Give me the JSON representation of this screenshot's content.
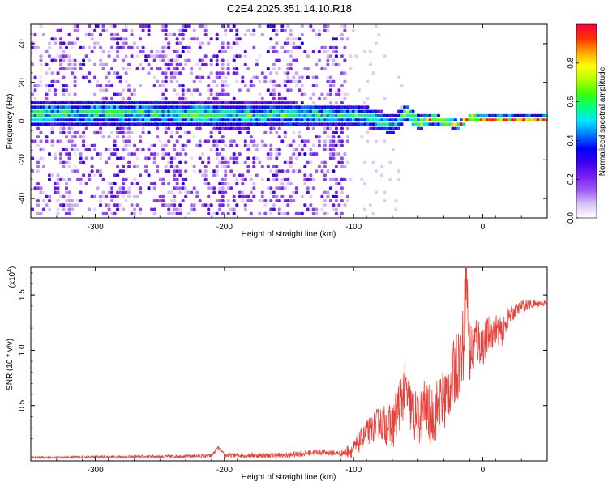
{
  "title": "C2E4.2025.351.14.10.R18",
  "chart_data": [
    {
      "type": "heatmap",
      "xlabel": "Height of straight line (km)",
      "ylabel": "Frequency (Hz)",
      "xlim": [
        -350,
        50
      ],
      "ylim": [
        -50,
        50
      ],
      "x_ticks": [
        "-300",
        "-200",
        "-100",
        "0"
      ],
      "y_ticks": [
        "-40",
        "-20",
        "0",
        "20",
        "40"
      ],
      "colorbar": {
        "label": "Normalized spectral amplitude",
        "range": [
          0,
          1
        ],
        "ticks": [
          "0.0",
          "0.2",
          "0.4",
          "0.6",
          "0.8"
        ],
        "colors": [
          "#ffffff",
          "#d7c4f5",
          "#9d5cf2",
          "#7a1ff0",
          "#3c00f0",
          "#0000ff",
          "#0078ff",
          "#00e5ff",
          "#00ff80",
          "#40ff00",
          "#b0ff00",
          "#ffff00",
          "#ffa000",
          "#ff3000",
          "#ff0040"
        ]
      },
      "band": {
        "center_hz": [
          [
            -290,
            4
          ],
          [
            -250,
            4
          ],
          [
            -200,
            3
          ],
          [
            -150,
            3
          ],
          [
            -110,
            3
          ],
          [
            -90,
            2
          ],
          [
            -70,
            -2
          ],
          [
            -60,
            4
          ],
          [
            -50,
            -1
          ],
          [
            -40,
            1
          ],
          [
            -20,
            -2
          ],
          [
            -10,
            2
          ],
          [
            0,
            1
          ],
          [
            20,
            1
          ],
          [
            50,
            1
          ]
        ],
        "half_width_hz": [
          [
            -290,
            7
          ],
          [
            -200,
            7
          ],
          [
            -110,
            6
          ],
          [
            -70,
            5
          ],
          [
            -40,
            3
          ],
          [
            -10,
            2
          ],
          [
            50,
            2
          ]
        ]
      }
    },
    {
      "type": "line",
      "xlabel": "Height of straight line (km)",
      "ylabel": "SNR (10 * v/v)",
      "y_multiplier": "(x10",
      "y_multiplier_exp": "4",
      "y_multiplier_close": ")",
      "xlim": [
        -350,
        50
      ],
      "ylim": [
        0,
        17500
      ],
      "x_ticks": [
        "-300",
        "-200",
        "-100",
        "0"
      ],
      "y_ticks": [
        "0.5",
        "1.0",
        "1.5"
      ],
      "line_color": "#e8413a",
      "series": [
        {
          "points": [
            [
              -350,
              300
            ],
            [
              -300,
              350
            ],
            [
              -250,
              400
            ],
            [
              -210,
              450
            ],
            [
              -205,
              1200
            ],
            [
              -200,
              500
            ],
            [
              -150,
              500
            ],
            [
              -130,
              800
            ],
            [
              -110,
              700
            ],
            [
              -100,
              1000
            ],
            [
              -90,
              2500
            ],
            [
              -80,
              3500
            ],
            [
              -70,
              3000
            ],
            [
              -65,
              5000
            ],
            [
              -60,
              6500
            ],
            [
              -55,
              4500
            ],
            [
              -50,
              3500
            ],
            [
              -45,
              5000
            ],
            [
              -40,
              4000
            ],
            [
              -30,
              5500
            ],
            [
              -25,
              7000
            ],
            [
              -20,
              8500
            ],
            [
              -15,
              10500
            ],
            [
              -13,
              17500
            ],
            [
              -10,
              9500
            ],
            [
              -5,
              11000
            ],
            [
              0,
              10500
            ],
            [
              5,
              11500
            ],
            [
              10,
              12000
            ],
            [
              15,
              11500
            ],
            [
              20,
              13000
            ],
            [
              25,
              13500
            ],
            [
              30,
              14000
            ],
            [
              40,
              14200
            ],
            [
              50,
              14300
            ]
          ],
          "noise": [
            [
              -350,
              100
            ],
            [
              -210,
              150
            ],
            [
              -200,
              200
            ],
            [
              -110,
              300
            ],
            [
              -100,
              800
            ],
            [
              -80,
              1500
            ],
            [
              -65,
              2500
            ],
            [
              -50,
              2500
            ],
            [
              -25,
              3000
            ],
            [
              -15,
              3500
            ],
            [
              0,
              2000
            ],
            [
              15,
              1200
            ],
            [
              25,
              600
            ],
            [
              50,
              250
            ]
          ]
        }
      ]
    }
  ]
}
